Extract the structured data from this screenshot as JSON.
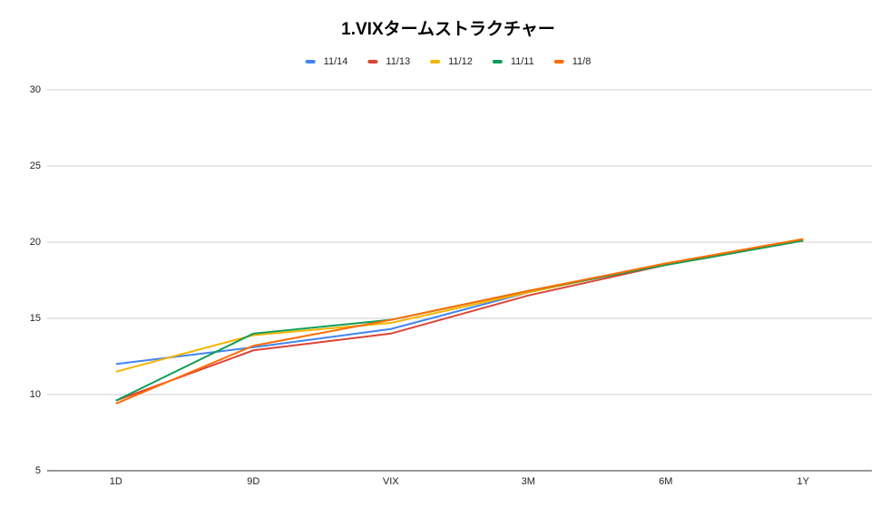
{
  "chart_data": {
    "type": "line",
    "title": "1.VIXタームストラクチャー",
    "categories": [
      "1D",
      "9D",
      "VIX",
      "3M",
      "6M",
      "1Y"
    ],
    "series": [
      {
        "name": "11/14",
        "color": "#4285f4",
        "values": [
          12.0,
          13.1,
          14.3,
          16.7,
          18.6,
          20.1
        ]
      },
      {
        "name": "11/13",
        "color": "#db4437",
        "values": [
          9.6,
          12.9,
          14.0,
          16.5,
          18.5,
          20.1
        ]
      },
      {
        "name": "11/12",
        "color": "#f4b400",
        "values": [
          11.5,
          13.9,
          14.7,
          16.7,
          18.6,
          20.2
        ]
      },
      {
        "name": "11/11",
        "color": "#0f9d58",
        "values": [
          9.6,
          14.0,
          14.9,
          16.8,
          18.5,
          20.1
        ]
      },
      {
        "name": "11/8",
        "color": "#ff6d01",
        "values": [
          9.4,
          13.2,
          14.9,
          16.8,
          18.6,
          20.2
        ]
      }
    ],
    "ylim": [
      5,
      30
    ],
    "yticks": [
      5,
      10,
      15,
      20,
      25,
      30
    ],
    "grid": true,
    "legend": "top"
  }
}
